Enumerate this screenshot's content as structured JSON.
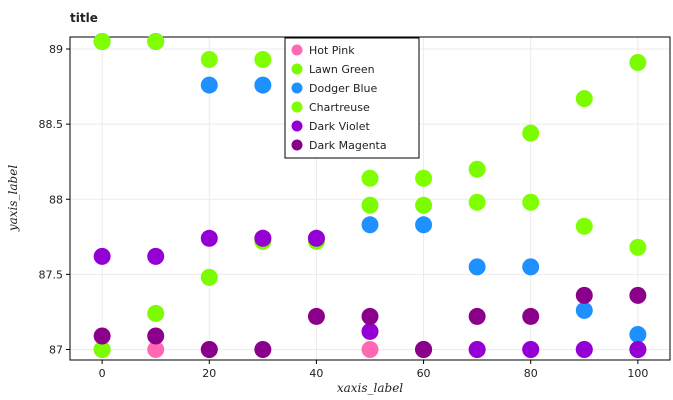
{
  "chart_data": {
    "type": "scatter",
    "title": "title",
    "xlabel": "xaxis_label",
    "ylabel": "yaxis_label",
    "xlim": [
      -6,
      106
    ],
    "ylim": [
      86.93,
      89.08
    ],
    "xticks": [
      0,
      20,
      40,
      60,
      80,
      100
    ],
    "yticks": [
      87,
      87.5,
      88,
      88.5,
      89
    ],
    "ytick_labels": [
      "87",
      "87.5",
      "88",
      "88.5",
      "89"
    ],
    "grid": true,
    "legend_position": "top-center",
    "series": [
      {
        "name": "Hot Pink",
        "color": "#ff69b4",
        "x": [
          0,
          10,
          20,
          30,
          40,
          50,
          60,
          70,
          80,
          90,
          100
        ],
        "y": [
          87.0,
          87.0,
          87.0,
          87.74,
          87.74,
          87.0,
          87.0,
          87.0,
          87.0,
          87.0,
          87.0
        ]
      },
      {
        "name": "Lawn Green",
        "color": "#7cfc00",
        "x": [
          0,
          10,
          20,
          30,
          40,
          50,
          60,
          70,
          80,
          90,
          100
        ],
        "y": [
          87.0,
          87.24,
          87.48,
          87.72,
          87.72,
          87.96,
          87.96,
          88.2,
          88.44,
          88.67,
          88.91
        ]
      },
      {
        "name": "Dodger Blue",
        "color": "#1e90ff",
        "x": [
          0,
          10,
          20,
          30,
          40,
          50,
          60,
          70,
          80,
          90,
          100
        ],
        "y": [
          89.05,
          89.05,
          88.76,
          88.76,
          88.47,
          87.83,
          87.83,
          87.55,
          87.55,
          87.26,
          87.1
        ]
      },
      {
        "name": "Chartreuse",
        "color": "#7fff00",
        "x": [
          0,
          10,
          20,
          30,
          40,
          50,
          60,
          70,
          80,
          90,
          100
        ],
        "y": [
          89.05,
          89.05,
          88.93,
          88.93,
          88.8,
          88.14,
          88.14,
          87.98,
          87.98,
          87.82,
          87.68
        ]
      },
      {
        "name": "Dark Violet",
        "color": "#9400d3",
        "x": [
          0,
          10,
          20,
          30,
          40,
          50,
          60,
          70,
          80,
          90,
          100
        ],
        "y": [
          87.62,
          87.62,
          87.74,
          87.74,
          87.74,
          87.12,
          87.0,
          87.0,
          87.0,
          87.0,
          87.0
        ]
      },
      {
        "name": "Dark Magenta",
        "color": "#8b008b",
        "x": [
          0,
          10,
          20,
          30,
          40,
          50,
          60,
          70,
          80,
          90,
          100
        ],
        "y": [
          87.09,
          87.09,
          87.0,
          87.0,
          87.22,
          87.22,
          87.0,
          87.22,
          87.22,
          87.36,
          87.36
        ]
      }
    ]
  }
}
